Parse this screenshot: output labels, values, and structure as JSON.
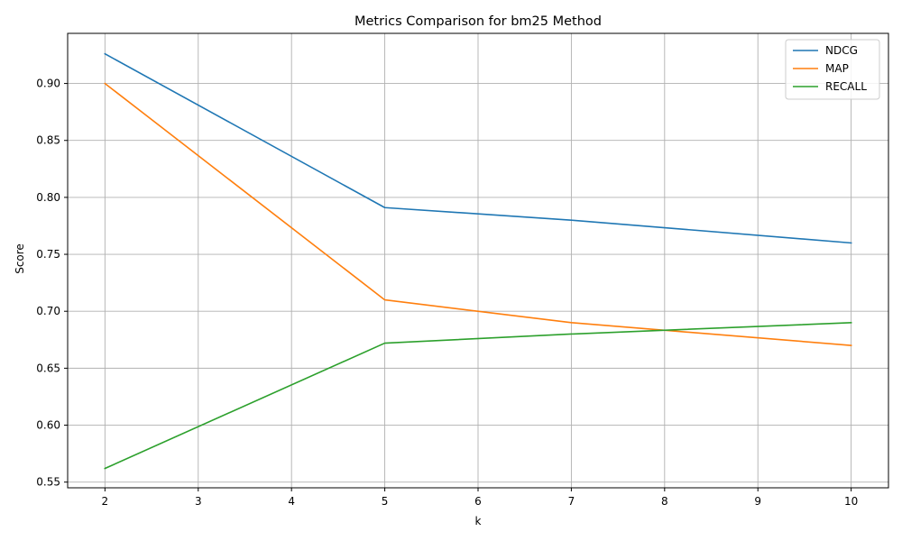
{
  "chart_data": {
    "type": "line",
    "title": "Metrics Comparison for bm25 Method",
    "xlabel": "k",
    "ylabel": "Score",
    "x": [
      2,
      5,
      7,
      10
    ],
    "xticks": [
      2,
      3,
      4,
      5,
      6,
      7,
      8,
      9,
      10
    ],
    "yticks": [
      0.55,
      0.6,
      0.65,
      0.7,
      0.75,
      0.8,
      0.85,
      0.9
    ],
    "xlim": [
      1.6,
      10.4
    ],
    "ylim": [
      0.545,
      0.944
    ],
    "grid": true,
    "legend_position": "top-right",
    "series": [
      {
        "name": "NDCG",
        "color": "#1f77b4",
        "values": [
          0.926,
          0.791,
          0.78,
          0.76
        ]
      },
      {
        "name": "MAP",
        "color": "#ff7f0e",
        "values": [
          0.9,
          0.71,
          0.69,
          0.67
        ]
      },
      {
        "name": "RECALL",
        "color": "#2ca02c",
        "values": [
          0.562,
          0.672,
          0.68,
          0.69
        ]
      }
    ]
  }
}
